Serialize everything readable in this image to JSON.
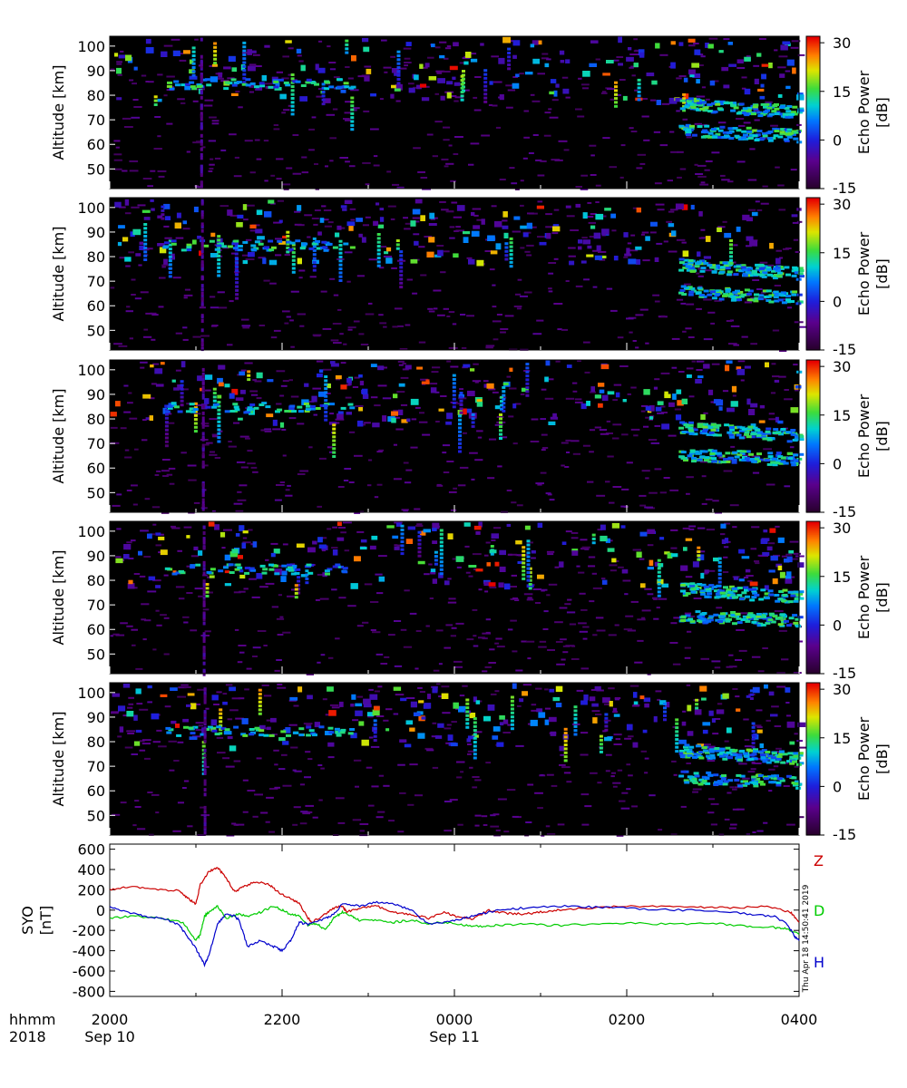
{
  "chart_data": [
    {
      "type": "heatmap",
      "ylabel": "Altitude [km]",
      "yticks": [
        50,
        60,
        70,
        80,
        90,
        100
      ],
      "ylim": [
        42,
        104
      ],
      "colorbar": {
        "label_line1": "Echo Power",
        "label_line2": "[dB]",
        "ticks": [
          -15,
          0,
          15,
          30
        ],
        "range": [
          -15,
          32
        ]
      },
      "xlim": [
        0,
        8
      ]
    },
    {
      "type": "heatmap",
      "ylabel": "Altitude [km]",
      "yticks": [
        50,
        60,
        70,
        80,
        90,
        100
      ],
      "ylim": [
        42,
        104
      ],
      "colorbar": {
        "label_line1": "Echo Power",
        "label_line2": "[dB]",
        "ticks": [
          -15,
          0,
          15,
          30
        ],
        "range": [
          -15,
          32
        ]
      },
      "xlim": [
        0,
        8
      ]
    },
    {
      "type": "heatmap",
      "ylabel": "Altitude [km]",
      "yticks": [
        50,
        60,
        70,
        80,
        90,
        100
      ],
      "ylim": [
        42,
        104
      ],
      "colorbar": {
        "label_line1": "Echo Power",
        "label_line2": "[dB]",
        "ticks": [
          -15,
          0,
          15,
          30
        ],
        "range": [
          -15,
          32
        ]
      },
      "xlim": [
        0,
        8
      ]
    },
    {
      "type": "heatmap",
      "ylabel": "Altitude [km]",
      "yticks": [
        50,
        60,
        70,
        80,
        90,
        100
      ],
      "ylim": [
        42,
        104
      ],
      "colorbar": {
        "label_line1": "Echo Power",
        "label_line2": "[dB]",
        "ticks": [
          -15,
          0,
          15,
          30
        ],
        "range": [
          -15,
          32
        ]
      },
      "xlim": [
        0,
        8
      ]
    },
    {
      "type": "heatmap",
      "ylabel": "Altitude [km]",
      "yticks": [
        50,
        60,
        70,
        80,
        90,
        100
      ],
      "ylim": [
        42,
        104
      ],
      "colorbar": {
        "label_line1": "Echo Power",
        "label_line2": "[dB]",
        "ticks": [
          -15,
          0,
          15,
          30
        ],
        "range": [
          -15,
          32
        ]
      },
      "xlim": [
        0,
        8
      ]
    },
    {
      "type": "line",
      "ylabel_line1": "SYO",
      "ylabel_line2": "[nT]",
      "yticks": [
        600,
        400,
        200,
        0,
        -200,
        -400,
        -600,
        -800
      ],
      "ylim": [
        -850,
        650
      ],
      "xlim": [
        0,
        8
      ],
      "series": [
        {
          "name": "Z",
          "color": "#cc0000",
          "points": [
            [
              0,
              200
            ],
            [
              0.2,
              230
            ],
            [
              0.5,
              205
            ],
            [
              0.8,
              190
            ],
            [
              0.9,
              120
            ],
            [
              1.0,
              60
            ],
            [
              1.05,
              250
            ],
            [
              1.15,
              380
            ],
            [
              1.25,
              420
            ],
            [
              1.35,
              320
            ],
            [
              1.45,
              180
            ],
            [
              1.55,
              230
            ],
            [
              1.7,
              280
            ],
            [
              1.85,
              250
            ],
            [
              1.95,
              180
            ],
            [
              2.1,
              110
            ],
            [
              2.2,
              70
            ],
            [
              2.3,
              -80
            ],
            [
              2.35,
              -120
            ],
            [
              2.5,
              -40
            ],
            [
              2.6,
              20
            ],
            [
              2.7,
              40
            ],
            [
              2.75,
              -20
            ],
            [
              2.9,
              20
            ],
            [
              3.1,
              40
            ],
            [
              3.3,
              -20
            ],
            [
              3.5,
              -40
            ],
            [
              3.7,
              -80
            ],
            [
              3.9,
              -20
            ],
            [
              4.0,
              -60
            ],
            [
              4.2,
              -90
            ],
            [
              4.4,
              0
            ],
            [
              4.6,
              -30
            ],
            [
              4.8,
              -40
            ],
            [
              5.0,
              -20
            ],
            [
              5.2,
              0
            ],
            [
              5.5,
              20
            ],
            [
              6.0,
              40
            ],
            [
              6.5,
              40
            ],
            [
              6.9,
              30
            ],
            [
              7.2,
              20
            ],
            [
              7.6,
              40
            ],
            [
              7.9,
              -20
            ],
            [
              8.0,
              -120
            ]
          ]
        },
        {
          "name": "D",
          "color": "#00cc00",
          "points": [
            [
              0,
              -80
            ],
            [
              0.3,
              -60
            ],
            [
              0.6,
              -80
            ],
            [
              0.85,
              -120
            ],
            [
              1.0,
              -300
            ],
            [
              1.05,
              -240
            ],
            [
              1.1,
              -60
            ],
            [
              1.15,
              -20
            ],
            [
              1.25,
              40
            ],
            [
              1.35,
              -80
            ],
            [
              1.5,
              -40
            ],
            [
              1.6,
              -60
            ],
            [
              1.75,
              -20
            ],
            [
              1.9,
              40
            ],
            [
              2.0,
              0
            ],
            [
              2.1,
              -40
            ],
            [
              2.2,
              -60
            ],
            [
              2.3,
              -150
            ],
            [
              2.4,
              -130
            ],
            [
              2.5,
              -200
            ],
            [
              2.6,
              -80
            ],
            [
              2.7,
              -20
            ],
            [
              2.8,
              -60
            ],
            [
              2.9,
              -100
            ],
            [
              3.1,
              -100
            ],
            [
              3.3,
              -120
            ],
            [
              3.5,
              -100
            ],
            [
              3.7,
              -130
            ],
            [
              3.9,
              -120
            ],
            [
              4.1,
              -150
            ],
            [
              4.3,
              -160
            ],
            [
              4.5,
              -150
            ],
            [
              4.8,
              -140
            ],
            [
              5.2,
              -150
            ],
            [
              5.6,
              -140
            ],
            [
              6.0,
              -130
            ],
            [
              6.5,
              -140
            ],
            [
              7.0,
              -130
            ],
            [
              7.4,
              -160
            ],
            [
              7.7,
              -170
            ],
            [
              7.85,
              -180
            ],
            [
              8.0,
              -240
            ]
          ]
        },
        {
          "name": "H",
          "color": "#0000cc",
          "points": [
            [
              0,
              40
            ],
            [
              0.2,
              -20
            ],
            [
              0.4,
              -60
            ],
            [
              0.6,
              -80
            ],
            [
              0.8,
              -140
            ],
            [
              0.9,
              -260
            ],
            [
              1.0,
              -380
            ],
            [
              1.05,
              -460
            ],
            [
              1.1,
              -540
            ],
            [
              1.15,
              -450
            ],
            [
              1.25,
              -140
            ],
            [
              1.35,
              -40
            ],
            [
              1.45,
              -60
            ],
            [
              1.5,
              -100
            ],
            [
              1.6,
              -360
            ],
            [
              1.75,
              -300
            ],
            [
              1.9,
              -360
            ],
            [
              2.0,
              -400
            ],
            [
              2.1,
              -300
            ],
            [
              2.2,
              -120
            ],
            [
              2.3,
              -140
            ],
            [
              2.5,
              -80
            ],
            [
              2.6,
              -40
            ],
            [
              2.7,
              60
            ],
            [
              2.9,
              40
            ],
            [
              3.1,
              80
            ],
            [
              3.3,
              60
            ],
            [
              3.5,
              0
            ],
            [
              3.7,
              -140
            ],
            [
              3.9,
              -120
            ],
            [
              4.1,
              -80
            ],
            [
              4.3,
              -40
            ],
            [
              4.5,
              0
            ],
            [
              4.8,
              20
            ],
            [
              5.2,
              40
            ],
            [
              5.6,
              30
            ],
            [
              6.0,
              20
            ],
            [
              6.5,
              0
            ],
            [
              7.0,
              0
            ],
            [
              7.4,
              -40
            ],
            [
              7.7,
              -60
            ],
            [
              7.85,
              -120
            ],
            [
              7.95,
              -260
            ],
            [
              8.0,
              -300
            ]
          ]
        }
      ]
    }
  ],
  "time_axis": {
    "row1_label": "hhmm",
    "row2_label": "2018",
    "ticks": [
      {
        "pos": 0,
        "time": "2000",
        "date": "Sep 10"
      },
      {
        "pos": 2,
        "time": "2200",
        "date": ""
      },
      {
        "pos": 4,
        "time": "0000",
        "date": "Sep 11"
      },
      {
        "pos": 6,
        "time": "0200",
        "date": ""
      },
      {
        "pos": 8,
        "time": "0400",
        "date": ""
      }
    ]
  },
  "timestamp": "Thu Apr 18 14:50:41 2019"
}
